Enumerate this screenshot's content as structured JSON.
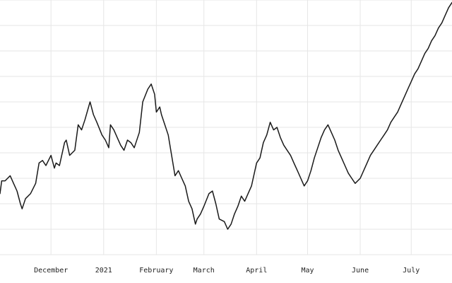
{
  "chart_data": {
    "type": "line",
    "title": "",
    "xlabel": "",
    "ylabel": "",
    "grid": true,
    "legend": "none",
    "x_axis": {
      "type": "date",
      "range": [
        "2020-11-01",
        "2021-07-25"
      ],
      "ticks": [
        {
          "date": "2020-12-01",
          "label": "December"
        },
        {
          "date": "2021-01-01",
          "label": "2021"
        },
        {
          "date": "2021-02-01",
          "label": "February"
        },
        {
          "date": "2021-03-01",
          "label": "March"
        },
        {
          "date": "2021-04-01",
          "label": "April"
        },
        {
          "date": "2021-05-01",
          "label": "May"
        },
        {
          "date": "2021-06-01",
          "label": "June"
        },
        {
          "date": "2021-07-01",
          "label": "July"
        }
      ]
    },
    "y_axis": {
      "range": [
        0,
        10
      ],
      "tick_values": [
        0,
        1,
        2,
        3,
        4,
        5,
        6,
        7,
        8,
        9,
        10
      ],
      "tick_labels_visible": false
    },
    "series": [
      {
        "color": "#1a1a1a",
        "points": [
          [
            "2020-11-01",
            2.4
          ],
          [
            "2020-11-02",
            2.9
          ],
          [
            "2020-11-04",
            2.9
          ],
          [
            "2020-11-07",
            3.1
          ],
          [
            "2020-11-09",
            2.8
          ],
          [
            "2020-11-11",
            2.5
          ],
          [
            "2020-11-13",
            2.0
          ],
          [
            "2020-11-14",
            1.8
          ],
          [
            "2020-11-16",
            2.2
          ],
          [
            "2020-11-19",
            2.4
          ],
          [
            "2020-11-22",
            2.8
          ],
          [
            "2020-11-24",
            3.6
          ],
          [
            "2020-11-26",
            3.7
          ],
          [
            "2020-11-28",
            3.5
          ],
          [
            "2020-12-01",
            3.9
          ],
          [
            "2020-12-03",
            3.4
          ],
          [
            "2020-12-04",
            3.6
          ],
          [
            "2020-12-06",
            3.5
          ],
          [
            "2020-12-09",
            4.4
          ],
          [
            "2020-12-10",
            4.5
          ],
          [
            "2020-12-12",
            3.9
          ],
          [
            "2020-12-15",
            4.1
          ],
          [
            "2020-12-17",
            5.1
          ],
          [
            "2020-12-19",
            4.9
          ],
          [
            "2020-12-21",
            5.3
          ],
          [
            "2020-12-24",
            6.0
          ],
          [
            "2020-12-26",
            5.5
          ],
          [
            "2020-12-28",
            5.2
          ],
          [
            "2020-12-31",
            4.7
          ],
          [
            "2021-01-02",
            4.5
          ],
          [
            "2021-01-04",
            4.2
          ],
          [
            "2021-01-05",
            5.1
          ],
          [
            "2021-01-07",
            4.9
          ],
          [
            "2021-01-09",
            4.6
          ],
          [
            "2021-01-11",
            4.3
          ],
          [
            "2021-01-13",
            4.1
          ],
          [
            "2021-01-15",
            4.5
          ],
          [
            "2021-01-17",
            4.4
          ],
          [
            "2021-01-19",
            4.2
          ],
          [
            "2021-01-22",
            4.8
          ],
          [
            "2021-01-24",
            6.0
          ],
          [
            "2021-01-27",
            6.5
          ],
          [
            "2021-01-29",
            6.7
          ],
          [
            "2021-01-31",
            6.3
          ],
          [
            "2021-02-01",
            5.6
          ],
          [
            "2021-02-03",
            5.8
          ],
          [
            "2021-02-04",
            5.5
          ],
          [
            "2021-02-06",
            5.1
          ],
          [
            "2021-02-08",
            4.7
          ],
          [
            "2021-02-10",
            3.9
          ],
          [
            "2021-02-12",
            3.1
          ],
          [
            "2021-02-14",
            3.3
          ],
          [
            "2021-02-16",
            3.0
          ],
          [
            "2021-02-18",
            2.7
          ],
          [
            "2021-02-20",
            2.1
          ],
          [
            "2021-02-22",
            1.8
          ],
          [
            "2021-02-24",
            1.2
          ],
          [
            "2021-02-25",
            1.4
          ],
          [
            "2021-02-27",
            1.6
          ],
          [
            "2021-03-01",
            1.9
          ],
          [
            "2021-03-04",
            2.4
          ],
          [
            "2021-03-06",
            2.5
          ],
          [
            "2021-03-08",
            2.0
          ],
          [
            "2021-03-10",
            1.4
          ],
          [
            "2021-03-13",
            1.3
          ],
          [
            "2021-03-15",
            1.0
          ],
          [
            "2021-03-17",
            1.2
          ],
          [
            "2021-03-19",
            1.6
          ],
          [
            "2021-03-21",
            1.9
          ],
          [
            "2021-03-23",
            2.3
          ],
          [
            "2021-03-25",
            2.1
          ],
          [
            "2021-03-27",
            2.4
          ],
          [
            "2021-03-29",
            2.7
          ],
          [
            "2021-04-01",
            3.6
          ],
          [
            "2021-04-03",
            3.8
          ],
          [
            "2021-04-05",
            4.4
          ],
          [
            "2021-04-07",
            4.7
          ],
          [
            "2021-04-09",
            5.2
          ],
          [
            "2021-04-11",
            4.9
          ],
          [
            "2021-04-13",
            5.0
          ],
          [
            "2021-04-15",
            4.6
          ],
          [
            "2021-04-17",
            4.3
          ],
          [
            "2021-04-19",
            4.1
          ],
          [
            "2021-04-21",
            3.9
          ],
          [
            "2021-04-23",
            3.6
          ],
          [
            "2021-04-25",
            3.3
          ],
          [
            "2021-04-27",
            3.0
          ],
          [
            "2021-04-29",
            2.7
          ],
          [
            "2021-05-01",
            2.9
          ],
          [
            "2021-05-03",
            3.3
          ],
          [
            "2021-05-05",
            3.8
          ],
          [
            "2021-05-07",
            4.2
          ],
          [
            "2021-05-09",
            4.6
          ],
          [
            "2021-05-11",
            4.9
          ],
          [
            "2021-05-13",
            5.1
          ],
          [
            "2021-05-15",
            4.8
          ],
          [
            "2021-05-17",
            4.5
          ],
          [
            "2021-05-19",
            4.1
          ],
          [
            "2021-05-21",
            3.8
          ],
          [
            "2021-05-23",
            3.5
          ],
          [
            "2021-05-25",
            3.2
          ],
          [
            "2021-05-27",
            3.0
          ],
          [
            "2021-05-29",
            2.8
          ],
          [
            "2021-06-01",
            3.0
          ],
          [
            "2021-06-03",
            3.3
          ],
          [
            "2021-06-05",
            3.6
          ],
          [
            "2021-06-07",
            3.9
          ],
          [
            "2021-06-09",
            4.1
          ],
          [
            "2021-06-11",
            4.3
          ],
          [
            "2021-06-13",
            4.5
          ],
          [
            "2021-06-15",
            4.7
          ],
          [
            "2021-06-17",
            4.9
          ],
          [
            "2021-06-19",
            5.2
          ],
          [
            "2021-06-21",
            5.4
          ],
          [
            "2021-06-23",
            5.6
          ],
          [
            "2021-06-25",
            5.9
          ],
          [
            "2021-06-27",
            6.2
          ],
          [
            "2021-06-29",
            6.5
          ],
          [
            "2021-07-01",
            6.8
          ],
          [
            "2021-07-03",
            7.1
          ],
          [
            "2021-07-05",
            7.3
          ],
          [
            "2021-07-07",
            7.6
          ],
          [
            "2021-07-09",
            7.9
          ],
          [
            "2021-07-11",
            8.1
          ],
          [
            "2021-07-13",
            8.4
          ],
          [
            "2021-07-15",
            8.6
          ],
          [
            "2021-07-17",
            8.9
          ],
          [
            "2021-07-19",
            9.1
          ],
          [
            "2021-07-21",
            9.4
          ],
          [
            "2021-07-23",
            9.7
          ],
          [
            "2021-07-25",
            9.9
          ]
        ]
      }
    ]
  }
}
